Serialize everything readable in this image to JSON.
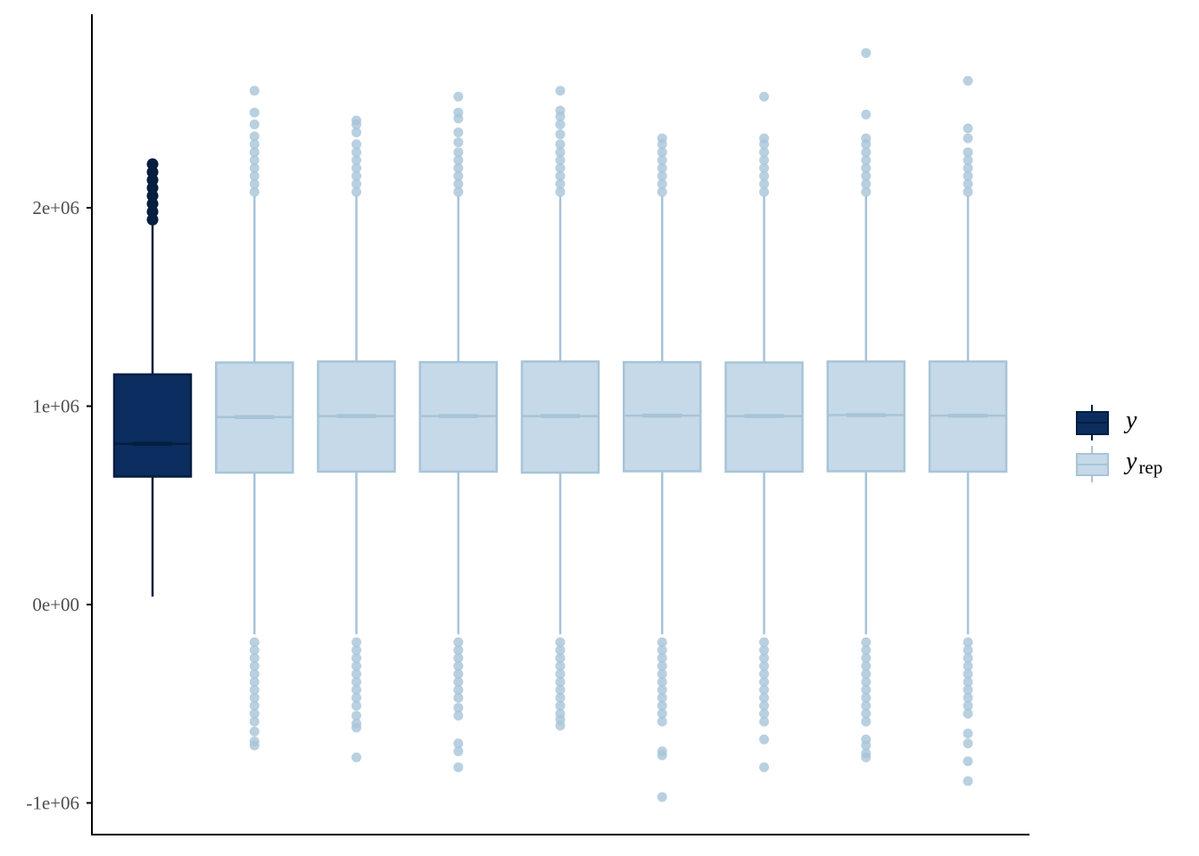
{
  "chart_data": {
    "type": "box",
    "y_axis": {
      "range": [
        -1150000,
        2950000
      ],
      "ticks": [
        -1000000,
        0,
        1000000,
        2000000
      ],
      "tick_labels": [
        "-1e+06",
        "0e+00",
        "1e+06",
        "2e+06"
      ]
    },
    "grid": false,
    "legend": {
      "placement": "right",
      "entries": [
        {
          "label": "y",
          "subscript": "",
          "series": "y"
        },
        {
          "label": "y",
          "subscript": "rep",
          "series": "yrep"
        }
      ]
    },
    "colors": {
      "y_fill": "#0b2d5f",
      "y_line": "#061e40",
      "yrep_fill": "#c6d9e8",
      "yrep_line": "#a7c4d8",
      "axis": "#000000"
    },
    "boxes": [
      {
        "series": "y",
        "q1": 645000,
        "median": 810000,
        "q3": 1160000,
        "whisker_low": 40000,
        "whisker_high": 1920000,
        "outliers_high": [
          1940000,
          1980000,
          2020000,
          2060000,
          2100000,
          2140000,
          2180000,
          2220000
        ],
        "outliers_low": []
      },
      {
        "series": "yrep",
        "q1": 665000,
        "median": 945000,
        "q3": 1220000,
        "whisker_low": -150000,
        "whisker_high": 2060000,
        "outliers_high": [
          2080000,
          2120000,
          2160000,
          2200000,
          2240000,
          2280000,
          2320000,
          2360000,
          2420000,
          2480000,
          2590000
        ],
        "outliers_low": [
          -190000,
          -230000,
          -270000,
          -310000,
          -350000,
          -390000,
          -430000,
          -470000,
          -510000,
          -550000,
          -590000,
          -640000,
          -690000,
          -710000
        ]
      },
      {
        "series": "yrep",
        "q1": 670000,
        "median": 950000,
        "q3": 1225000,
        "whisker_low": -150000,
        "whisker_high": 2060000,
        "outliers_high": [
          2080000,
          2120000,
          2160000,
          2200000,
          2240000,
          2280000,
          2320000,
          2380000,
          2420000,
          2440000
        ],
        "outliers_low": [
          -190000,
          -230000,
          -270000,
          -310000,
          -350000,
          -390000,
          -430000,
          -470000,
          -510000,
          -560000,
          -600000,
          -620000,
          -770000
        ]
      },
      {
        "series": "yrep",
        "q1": 670000,
        "median": 950000,
        "q3": 1222000,
        "whisker_low": -150000,
        "whisker_high": 2060000,
        "outliers_high": [
          2080000,
          2120000,
          2160000,
          2200000,
          2240000,
          2280000,
          2330000,
          2380000,
          2450000,
          2480000,
          2560000
        ],
        "outliers_low": [
          -190000,
          -230000,
          -270000,
          -310000,
          -350000,
          -390000,
          -430000,
          -470000,
          -520000,
          -560000,
          -700000,
          -740000,
          -820000
        ]
      },
      {
        "series": "yrep",
        "q1": 665000,
        "median": 950000,
        "q3": 1225000,
        "whisker_low": -150000,
        "whisker_high": 2060000,
        "outliers_high": [
          2080000,
          2120000,
          2160000,
          2200000,
          2240000,
          2280000,
          2320000,
          2370000,
          2420000,
          2460000,
          2490000,
          2590000
        ],
        "outliers_low": [
          -190000,
          -230000,
          -270000,
          -310000,
          -350000,
          -390000,
          -430000,
          -470000,
          -510000,
          -550000,
          -580000,
          -610000
        ]
      },
      {
        "series": "yrep",
        "q1": 672000,
        "median": 952000,
        "q3": 1222000,
        "whisker_low": -150000,
        "whisker_high": 2060000,
        "outliers_high": [
          2080000,
          2120000,
          2160000,
          2200000,
          2240000,
          2280000,
          2320000,
          2350000
        ],
        "outliers_low": [
          -190000,
          -230000,
          -270000,
          -310000,
          -350000,
          -390000,
          -430000,
          -470000,
          -510000,
          -550000,
          -590000,
          -740000,
          -760000,
          -970000
        ]
      },
      {
        "series": "yrep",
        "q1": 670000,
        "median": 950000,
        "q3": 1220000,
        "whisker_low": -150000,
        "whisker_high": 2060000,
        "outliers_high": [
          2080000,
          2120000,
          2160000,
          2200000,
          2240000,
          2280000,
          2320000,
          2350000,
          2560000
        ],
        "outliers_low": [
          -190000,
          -230000,
          -270000,
          -310000,
          -350000,
          -390000,
          -430000,
          -470000,
          -510000,
          -550000,
          -590000,
          -680000,
          -820000
        ]
      },
      {
        "series": "yrep",
        "q1": 672000,
        "median": 955000,
        "q3": 1225000,
        "whisker_low": -150000,
        "whisker_high": 2060000,
        "outliers_high": [
          2080000,
          2120000,
          2160000,
          2200000,
          2240000,
          2280000,
          2320000,
          2350000,
          2470000,
          2780000
        ],
        "outliers_low": [
          -190000,
          -230000,
          -270000,
          -310000,
          -350000,
          -390000,
          -430000,
          -470000,
          -510000,
          -550000,
          -590000,
          -680000,
          -710000,
          -750000,
          -770000
        ]
      },
      {
        "series": "yrep",
        "q1": 670000,
        "median": 952000,
        "q3": 1225000,
        "whisker_low": -150000,
        "whisker_high": 2060000,
        "outliers_high": [
          2080000,
          2120000,
          2160000,
          2200000,
          2240000,
          2280000,
          2350000,
          2400000,
          2640000
        ],
        "outliers_low": [
          -190000,
          -230000,
          -270000,
          -310000,
          -350000,
          -390000,
          -430000,
          -470000,
          -510000,
          -550000,
          -650000,
          -700000,
          -790000,
          -890000
        ]
      }
    ]
  }
}
